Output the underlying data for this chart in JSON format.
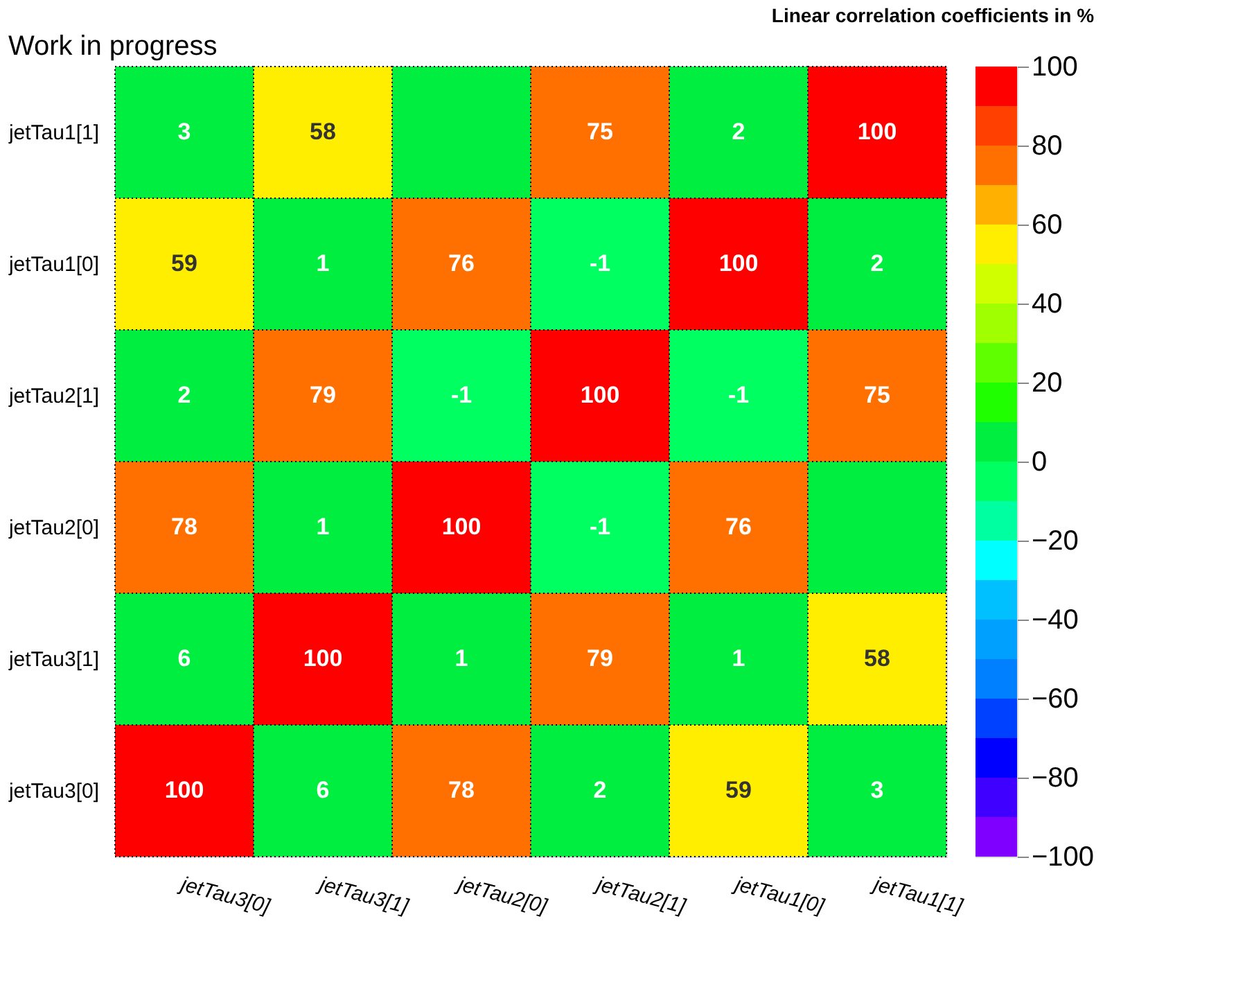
{
  "chart_data": {
    "type": "heatmap",
    "title": "Work in progress",
    "clabel": "Linear correlation coefficients in %",
    "categories": [
      "jetTau3[0]",
      "jetTau3[1]",
      "jetTau2[0]",
      "jetTau2[1]",
      "jetTau1[0]",
      "jetTau1[1]"
    ],
    "y_categories": [
      "jetTau1[1]",
      "jetTau1[0]",
      "jetTau2[1]",
      "jetTau2[0]",
      "jetTau3[1]",
      "jetTau3[0]"
    ],
    "cells": [
      [
        3,
        58,
        0,
        75,
        2,
        100
      ],
      [
        59,
        1,
        76,
        -1,
        100,
        2
      ],
      [
        2,
        79,
        -1,
        100,
        -1,
        75
      ],
      [
        78,
        1,
        100,
        -1,
        76,
        0
      ],
      [
        6,
        100,
        1,
        79,
        1,
        58
      ],
      [
        100,
        6,
        78,
        2,
        59,
        3
      ]
    ],
    "cell_labels": [
      [
        "3",
        "58",
        null,
        "75",
        "2",
        "100"
      ],
      [
        "59",
        "1",
        "76",
        "-1",
        "100",
        "2"
      ],
      [
        "2",
        "79",
        "-1",
        "100",
        "-1",
        "75"
      ],
      [
        "78",
        "1",
        "100",
        "-1",
        "76",
        null
      ],
      [
        "6",
        "100",
        "1",
        "79",
        "1",
        "58"
      ],
      [
        "100",
        "6",
        "78",
        "2",
        "59",
        "3"
      ]
    ],
    "clim": [
      -100,
      100
    ],
    "cticks": [
      -100,
      -80,
      -60,
      -40,
      -20,
      0,
      20,
      40,
      60,
      80,
      100
    ],
    "grid": false
  }
}
